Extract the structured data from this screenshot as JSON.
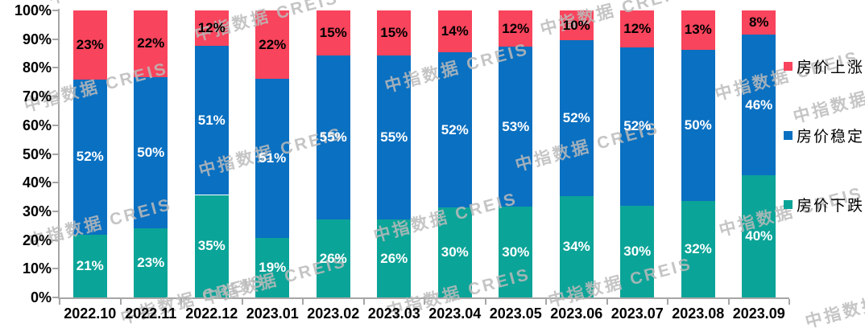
{
  "chart": {
    "watermark_text": "中指数据 CREIS",
    "colors": {
      "price_up": "#F8445C",
      "price_stable": "#0A70C1",
      "price_down": "#0BA498",
      "axis": "#A6A6A6",
      "watermark": "#BBBBBB",
      "label_on_dark": "#FFFFFF",
      "label_on_red": "#000000"
    },
    "legend": [
      {
        "id": "price-up",
        "label": "房价上涨",
        "color": "#F8445C"
      },
      {
        "id": "price-stable",
        "label": "房价稳定",
        "color": "#0A70C1"
      },
      {
        "id": "price-down",
        "label": "房价下跌",
        "color": "#0BA498"
      }
    ]
  },
  "chart_data": {
    "type": "bar",
    "stacked": true,
    "normalize_to_100": true,
    "title": "",
    "xlabel": "",
    "ylabel": "",
    "ylim": [
      0,
      100
    ],
    "grid": false,
    "legend_position": "right",
    "value_suffix": "%",
    "yticks": [
      "0%",
      "10%",
      "20%",
      "30%",
      "40%",
      "50%",
      "60%",
      "70%",
      "80%",
      "90%",
      "100%"
    ],
    "categories": [
      "2022.10",
      "2022.11",
      "2022.12",
      "2023.01",
      "2023.02",
      "2023.03",
      "2023.04",
      "2023.05",
      "2023.06",
      "2023.07",
      "2023.08",
      "2023.09"
    ],
    "series": [
      {
        "name": "房价下跌",
        "color": "#0BA498",
        "label_color": "#FFFFFF",
        "values": [
          21,
          23,
          35,
          19,
          26,
          26,
          30,
          30,
          34,
          30,
          32,
          40
        ]
      },
      {
        "name": "房价稳定",
        "color": "#0A70C1",
        "label_color": "#FFFFFF",
        "values": [
          52,
          50,
          51,
          51,
          55,
          55,
          52,
          53,
          52,
          52,
          50,
          46
        ]
      },
      {
        "name": "房价上涨",
        "color": "#F8445C",
        "label_color": "#000000",
        "values": [
          23,
          22,
          12,
          22,
          15,
          15,
          14,
          12,
          10,
          12,
          13,
          8
        ]
      }
    ]
  }
}
